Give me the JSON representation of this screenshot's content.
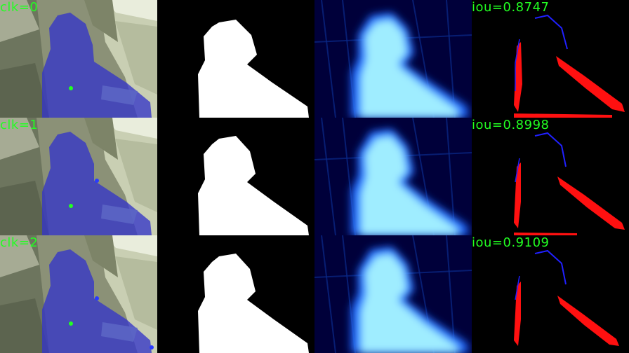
{
  "rows": [
    {
      "click_label": "clk=0",
      "iou_label": "iou=0.8747"
    },
    {
      "click_label": "clk=1",
      "iou_label": "iou=0.8998"
    },
    {
      "click_label": "clk=2",
      "iou_label": "iou=0.9109"
    }
  ],
  "colors": {
    "overlay_tint": "#3535c8",
    "mask_fill": "#ffffff",
    "heatmap_core": "#aefcff",
    "heatmap_edge": "#1a66ff",
    "heatmap_bg": "#00003a",
    "error_fp": "#ff1010",
    "error_fn": "#2020ff",
    "label_green": "#22ff22",
    "click_positive": "#22ff22",
    "click_negative": "#2a3bff"
  }
}
